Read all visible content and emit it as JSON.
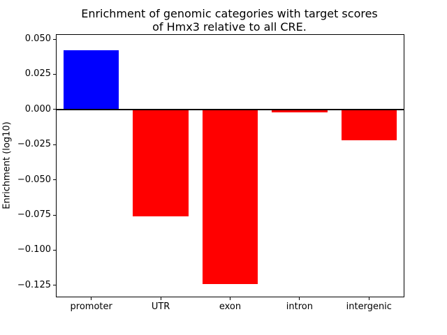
{
  "figure": {
    "title_line1": "Enrichment of genomic categories with target scores",
    "title_line2": "of Hmx3 relative to all CRE.",
    "ylabel": "Enrichment (log10)"
  },
  "chart_data": {
    "type": "bar",
    "title": "Enrichment of genomic categories with target scores of Hmx3 relative to all CRE.",
    "xlabel": "",
    "ylabel": "Enrichment (log10)",
    "categories": [
      "promoter",
      "UTR",
      "exon",
      "intron",
      "intergenic"
    ],
    "values": [
      0.042,
      -0.076,
      -0.124,
      -0.002,
      -0.022
    ],
    "bar_colors": [
      "#0000ff",
      "#ff0000",
      "#ff0000",
      "#ff0000",
      "#ff0000"
    ],
    "positive_color": "#0000ff",
    "negative_color": "#ff0000",
    "ylim": [
      -0.133,
      0.053
    ],
    "yticks": [
      0.05,
      0.025,
      0.0,
      -0.025,
      -0.05,
      -0.075,
      -0.1,
      -0.125
    ],
    "ytick_labels": [
      "0.050",
      "0.025",
      "0.000",
      "−0.025",
      "−0.050",
      "−0.075",
      "−0.100",
      "−0.125"
    ],
    "grid": false,
    "legend": "none",
    "zero_line": true,
    "bar_width_fraction": 0.8
  }
}
